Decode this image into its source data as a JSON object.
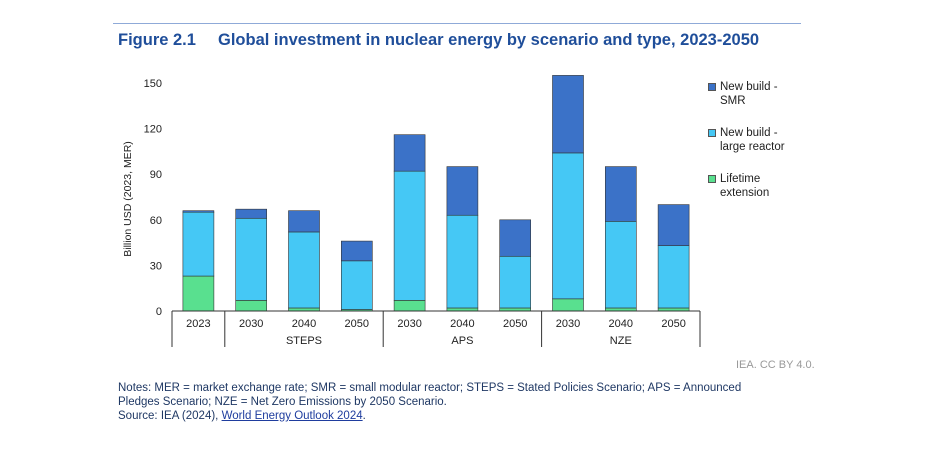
{
  "figure": {
    "number": "Figure 2.1",
    "title": "Global investment in nuclear energy by scenario and type, 2023-2050"
  },
  "legend": {
    "items": [
      {
        "label_line1": "New build -",
        "label_line2": "SMR",
        "color": "#3b72c8"
      },
      {
        "label_line1": "New build -",
        "label_line2": "large reactor",
        "color": "#45c8f5"
      },
      {
        "label_line1": "Lifetime",
        "label_line2": "extension",
        "color": "#59e08f"
      }
    ]
  },
  "credit": "IEA. CC BY 4.0.",
  "notes": {
    "line1": "Notes: MER = market exchange rate; SMR = small modular reactor; STEPS = Stated Policies Scenario; APS = Announced",
    "line2": "Pledges Scenario; NZE = Net Zero Emissions by 2050 Scenario.",
    "source_prefix": "Source: IEA (2024), ",
    "source_link": "World Energy Outlook 2024",
    "source_suffix": "."
  },
  "chart_data": {
    "type": "bar",
    "stacked": true,
    "ylabel": "Billion USD (2023, MER)",
    "ylim": [
      0,
      150
    ],
    "yticks": [
      0,
      30,
      60,
      90,
      120,
      150
    ],
    "categories": [
      "2023",
      "2030",
      "2040",
      "2050",
      "2030",
      "2040",
      "2050",
      "2030",
      "2040",
      "2050"
    ],
    "groups": [
      {
        "label": "",
        "categories": [
          "2023"
        ]
      },
      {
        "label": "STEPS",
        "categories": [
          "2030",
          "2040",
          "2050"
        ]
      },
      {
        "label": "APS",
        "categories": [
          "2030",
          "2040",
          "2050"
        ]
      },
      {
        "label": "NZE",
        "categories": [
          "2030",
          "2040",
          "2050"
        ]
      }
    ],
    "series": [
      {
        "name": "Lifetime extension",
        "color": "#59e08f",
        "values": [
          23,
          7,
          2,
          1,
          7,
          2,
          2,
          8,
          2,
          2
        ]
      },
      {
        "name": "New build - large reactor",
        "color": "#45c8f5",
        "values": [
          42,
          54,
          50,
          32,
          85,
          61,
          34,
          96,
          57,
          41
        ]
      },
      {
        "name": "New build - SMR",
        "color": "#3b72c8",
        "values": [
          1,
          6,
          14,
          13,
          24,
          32,
          24,
          51,
          36,
          27
        ]
      }
    ],
    "grid": false,
    "legend_position": "right"
  }
}
